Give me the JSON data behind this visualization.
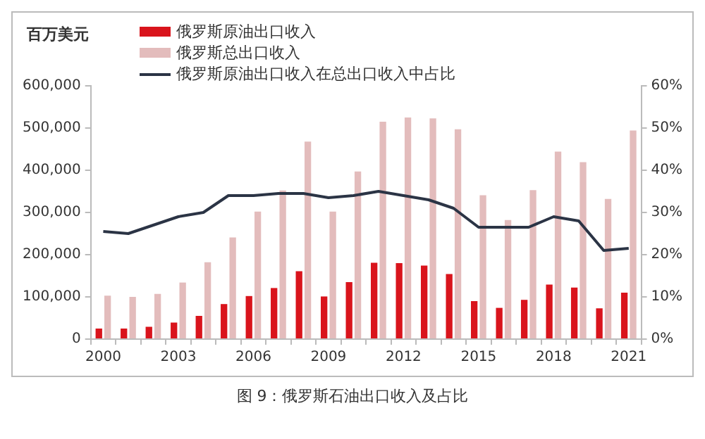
{
  "chart_data": {
    "type": "bar",
    "ylabel": "百万美元",
    "categories": [
      "2000",
      null,
      null,
      "2003",
      null,
      null,
      "2006",
      null,
      null,
      "2009",
      null,
      null,
      "2012",
      null,
      null,
      "2015",
      null,
      null,
      "2018",
      null,
      null,
      "2021"
    ],
    "series": [
      {
        "name": "俄罗斯原油出口收入",
        "color": "#d9141c",
        "values": [
          25000,
          25000,
          29000,
          39000,
          55000,
          83000,
          102000,
          121000,
          161000,
          101000,
          135000,
          181000,
          180000,
          174000,
          154000,
          90000,
          74000,
          93000,
          129000,
          122000,
          73000,
          110000
        ]
      },
      {
        "name": "俄罗斯总出口收入",
        "color": "#e3bcbc",
        "values": [
          103000,
          100000,
          107000,
          134000,
          182000,
          241000,
          302000,
          352000,
          468000,
          302000,
          397000,
          515000,
          525000,
          523000,
          497000,
          341000,
          282000,
          353000,
          444000,
          419000,
          332000,
          494000
        ]
      },
      {
        "name": "俄罗斯原油出口收入在总出口收入中占比",
        "type": "line",
        "axis": "y2",
        "color": "#2b3445",
        "values": [
          25.5,
          25,
          27,
          29,
          30,
          34,
          34,
          34.5,
          34.5,
          33.5,
          34,
          35,
          34,
          33,
          31,
          26.5,
          26.5,
          26.5,
          29,
          28,
          21,
          21.5
        ]
      }
    ],
    "ylim": [
      0,
      600000
    ],
    "yticks": [
      {
        "value": 0,
        "label": "0"
      },
      {
        "value": 100000,
        "label": "100,000"
      },
      {
        "value": 200000,
        "label": "200,000"
      },
      {
        "value": 300000,
        "label": "300,000"
      },
      {
        "value": 400000,
        "label": "400,000"
      },
      {
        "value": 500000,
        "label": "500,000"
      },
      {
        "value": 600000,
        "label": "600,000"
      }
    ],
    "y2lim": [
      0,
      60
    ],
    "y2ticks": [
      {
        "value": 0,
        "label": "0%"
      },
      {
        "value": 10,
        "label": "10%"
      },
      {
        "value": 20,
        "label": "20%"
      },
      {
        "value": 30,
        "label": "30%"
      },
      {
        "value": 40,
        "label": "40%"
      },
      {
        "value": 50,
        "label": "50%"
      },
      {
        "value": 60,
        "label": "60%"
      }
    ],
    "grid": false,
    "legend": "top left",
    "marker": "none",
    "line_style": "solid",
    "annotations": [
      "图 9：俄罗斯石油出口收入及占比"
    ]
  }
}
